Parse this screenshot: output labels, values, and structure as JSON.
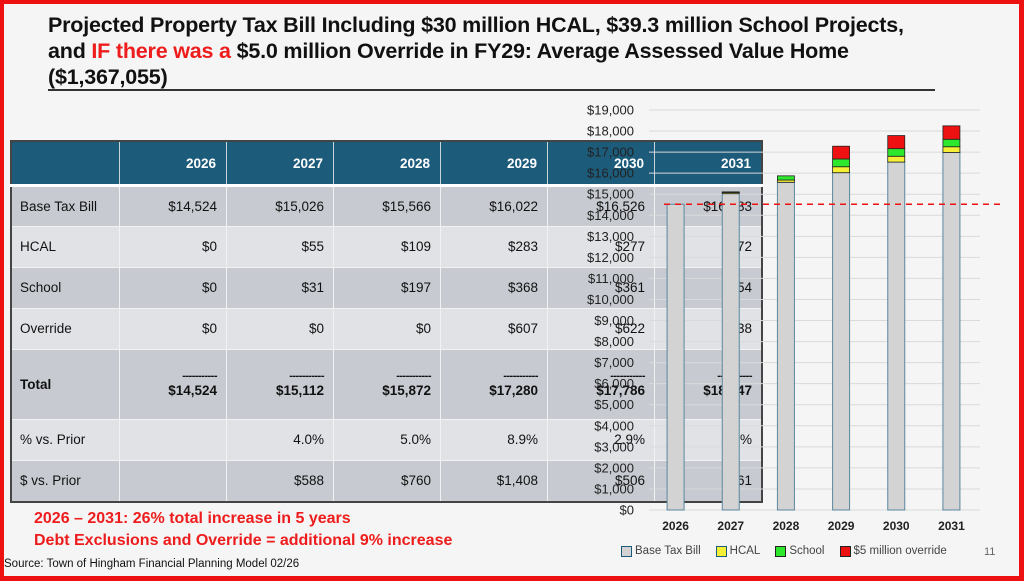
{
  "title": {
    "part1": "Projected Property Tax Bill Including $30 million HCAL, $39.3 million School Projects,",
    "part2_prefix": "and ",
    "part2_red": "IF there was a",
    "part2_suffix": " $5.0 million Override in FY29:  Average Assessed Value Home",
    "part3": "($1,367,055)"
  },
  "table": {
    "headers": [
      "",
      "2026",
      "2027",
      "2028",
      "2029",
      "2030",
      "2031"
    ],
    "rows": [
      {
        "label": "Base Tax Bill",
        "values": [
          "$14,524",
          "$15,026",
          "$15,566",
          "$16,022",
          "$16,526",
          "$16,983"
        ]
      },
      {
        "label": "HCAL",
        "values": [
          "$0",
          "$55",
          "$109",
          "$283",
          "$277",
          "$272"
        ]
      },
      {
        "label": "School",
        "values": [
          "$0",
          "$31",
          "$197",
          "$368",
          "$361",
          "$354"
        ]
      },
      {
        "label": "Override",
        "values": [
          "$0",
          "$0",
          "$0",
          "$607",
          "$622",
          "$638"
        ]
      }
    ],
    "total": {
      "label": "Total",
      "separator": "-----------",
      "values": [
        "$14,524",
        "$15,112",
        "$15,872",
        "$17,280",
        "$17,786",
        "$18,247"
      ]
    },
    "pct_row": {
      "label": "% vs. Prior",
      "values": [
        "",
        "4.0%",
        "5.0%",
        "8.9%",
        "2.9%",
        "2.6%"
      ]
    },
    "dollar_row": {
      "label": "$ vs. Prior",
      "values": [
        "",
        "$588",
        "$760",
        "$1,408",
        "$506",
        "$461"
      ]
    }
  },
  "notes": {
    "line1": "2026 – 2031:  26% total increase in 5 years",
    "line2": "Debt Exclusions and Override = additional 9% increase"
  },
  "source": "Source:  Town of Hingham Financial Planning Model 02/26",
  "page_number": "11",
  "colors": {
    "header": "#1d5b7b",
    "accent_red": "#ee1c1c",
    "base": "#d3d3d3",
    "hcal": "#f5f035",
    "school": "#2de82d",
    "override": "#ee1111"
  },
  "chart_data": {
    "type": "bar",
    "stacked": true,
    "categories": [
      "2026",
      "2027",
      "2028",
      "2029",
      "2030",
      "2031"
    ],
    "series": [
      {
        "name": "Base Tax Bill",
        "color": "#d3d3d3",
        "values": [
          14524,
          15026,
          15566,
          16022,
          16526,
          16983
        ]
      },
      {
        "name": "HCAL",
        "color": "#f5f035",
        "values": [
          0,
          55,
          109,
          283,
          277,
          272
        ]
      },
      {
        "name": "School",
        "color": "#2de82d",
        "values": [
          0,
          31,
          197,
          368,
          361,
          354
        ]
      },
      {
        "name": "$5 million override",
        "color": "#ee1111",
        "values": [
          0,
          0,
          0,
          607,
          622,
          638
        ]
      }
    ],
    "reference_line": {
      "value": 14524,
      "style": "dashed",
      "color": "#ee1111"
    },
    "ylim": [
      0,
      19000
    ],
    "ytick_step": 1000,
    "yticks": [
      "$0",
      "$1,000",
      "$2,000",
      "$3,000",
      "$4,000",
      "$5,000",
      "$6,000",
      "$7,000",
      "$8,000",
      "$9,000",
      "$10,000",
      "$11,000",
      "$12,000",
      "$13,000",
      "$14,000",
      "$15,000",
      "$16,000",
      "$17,000",
      "$18,000",
      "$19,000"
    ],
    "grid": true,
    "legend": "bottom",
    "title": "",
    "xlabel": "",
    "ylabel": ""
  }
}
